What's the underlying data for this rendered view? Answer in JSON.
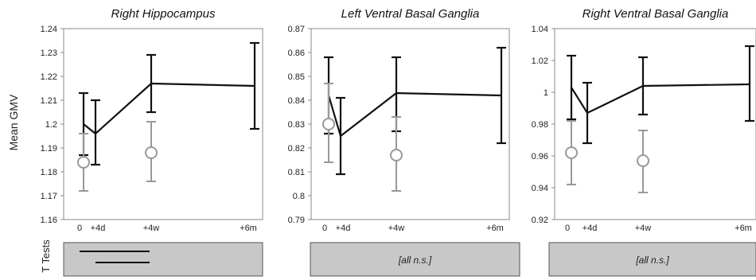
{
  "figure": {
    "ylabel": "Mean GMV",
    "ttests_label": "T Tests"
  },
  "chart_data": [
    {
      "type": "line",
      "title": "Right Hippocampus",
      "xlabel": "",
      "ylabel": "Mean GMV",
      "x_tick_labels": [
        "0",
        "+4d",
        "+4w",
        "+6m"
      ],
      "ylim": [
        1.16,
        1.24
      ],
      "y_ticks": [
        "1.16",
        "1.17",
        "1.18",
        "1.19",
        "1.2",
        "1.21",
        "1.22",
        "1.23",
        "1.24"
      ],
      "series": [
        {
          "style": "line-black",
          "points": [
            {
              "x": "0",
              "y": 1.2,
              "err_low": 1.187,
              "err_high": 1.213
            },
            {
              "x": "+4d",
              "y": 1.196,
              "err_low": 1.183,
              "err_high": 1.21
            },
            {
              "x": "+4w",
              "y": 1.217,
              "err_low": 1.205,
              "err_high": 1.229
            },
            {
              "x": "+6m",
              "y": 1.216,
              "err_low": 1.198,
              "err_high": 1.234
            }
          ]
        },
        {
          "style": "circle-gray",
          "points": [
            {
              "x": "0",
              "y": 1.184,
              "err_low": 1.172,
              "err_high": 1.196
            },
            {
              "x": "+4w",
              "y": 1.188,
              "err_low": 1.176,
              "err_high": 1.201
            }
          ]
        }
      ],
      "ttest": {
        "text": "",
        "bars": [
          [
            "0",
            "+4w"
          ],
          [
            "+4d",
            "+4w"
          ]
        ]
      }
    },
    {
      "type": "line",
      "title": "Left Ventral Basal Ganglia",
      "xlabel": "",
      "ylabel": "",
      "x_tick_labels": [
        "0",
        "+4d",
        "+4w",
        "+6m"
      ],
      "ylim": [
        0.79,
        0.87
      ],
      "y_ticks": [
        "0.79",
        "0.8",
        "0.81",
        "0.82",
        "0.83",
        "0.84",
        "0.85",
        "0.86",
        "0.87"
      ],
      "series": [
        {
          "style": "line-black",
          "points": [
            {
              "x": "0",
              "y": 0.842,
              "err_low": 0.826,
              "err_high": 0.858
            },
            {
              "x": "+4d",
              "y": 0.825,
              "err_low": 0.809,
              "err_high": 0.841
            },
            {
              "x": "+4w",
              "y": 0.843,
              "err_low": 0.827,
              "err_high": 0.858
            },
            {
              "x": "+6m",
              "y": 0.842,
              "err_low": 0.822,
              "err_high": 0.862
            }
          ]
        },
        {
          "style": "circle-gray",
          "points": [
            {
              "x": "0",
              "y": 0.83,
              "err_low": 0.814,
              "err_high": 0.847
            },
            {
              "x": "+4w",
              "y": 0.817,
              "err_low": 0.802,
              "err_high": 0.833
            }
          ]
        }
      ],
      "ttest": {
        "text": "[all n.s.]",
        "bars": []
      }
    },
    {
      "type": "line",
      "title": "Right Ventral Basal Ganglia",
      "xlabel": "",
      "ylabel": "",
      "x_tick_labels": [
        "0",
        "+4d",
        "+4w",
        "+6m"
      ],
      "ylim": [
        0.92,
        1.04
      ],
      "y_ticks": [
        "0.92",
        "0.94",
        "0.96",
        "0.98",
        "1",
        "1.02",
        "1.04"
      ],
      "series": [
        {
          "style": "line-black",
          "points": [
            {
              "x": "0",
              "y": 1.003,
              "err_low": 0.983,
              "err_high": 1.023
            },
            {
              "x": "+4d",
              "y": 0.987,
              "err_low": 0.968,
              "err_high": 1.006
            },
            {
              "x": "+4w",
              "y": 1.004,
              "err_low": 0.986,
              "err_high": 1.022
            },
            {
              "x": "+6m",
              "y": 1.005,
              "err_low": 0.982,
              "err_high": 1.029
            }
          ]
        },
        {
          "style": "circle-gray",
          "points": [
            {
              "x": "0",
              "y": 0.962,
              "err_low": 0.942,
              "err_high": 0.982
            },
            {
              "x": "+4w",
              "y": 0.957,
              "err_low": 0.937,
              "err_high": 0.976
            }
          ]
        }
      ],
      "ttest": {
        "text": "[all n.s.]",
        "bars": []
      }
    }
  ],
  "colors": {
    "line": "#111111",
    "gray": "#999999",
    "axes": "#888888",
    "box_fill": "#c8c8c8",
    "box_stroke": "#555555"
  }
}
